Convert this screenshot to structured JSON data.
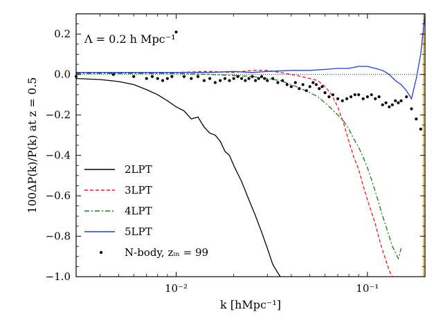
{
  "chart_data": {
    "type": "line",
    "x_scale": "log",
    "xlabel": "k [hMpc⁻¹]",
    "ylabel": "100ΔP(k)/P(k) at z = 0.5",
    "xlim": [
      0.003,
      0.2
    ],
    "ylim": [
      -1.0,
      0.3
    ],
    "x_ticks": [
      {
        "value": 0.01,
        "label": "10⁻²"
      },
      {
        "value": 0.1,
        "label": "10⁻¹"
      }
    ],
    "y_ticks": [
      {
        "value": 0.2,
        "label": "0.2"
      },
      {
        "value": 0.0,
        "label": "0.0"
      },
      {
        "value": -0.2,
        "label": "−0.2"
      },
      {
        "value": -0.4,
        "label": "−0.4"
      },
      {
        "value": -0.6,
        "label": "−0.6"
      },
      {
        "value": -0.8,
        "label": "−0.8"
      },
      {
        "value": -1.0,
        "label": "−1.0"
      }
    ],
    "annotation": "Λ = 0.2 h Mpc⁻¹",
    "zero_reference_line": true,
    "vertical_marker_x": 0.2,
    "series": [
      {
        "name": "2LPT",
        "color": "#000000",
        "dash": "",
        "x": [
          0.003,
          0.004,
          0.005,
          0.006,
          0.007,
          0.008,
          0.009,
          0.01,
          0.011,
          0.012,
          0.013,
          0.014,
          0.015,
          0.016,
          0.017,
          0.018,
          0.019,
          0.02,
          0.022,
          0.024,
          0.026,
          0.028,
          0.03,
          0.032,
          0.035
        ],
        "y": [
          -0.02,
          -0.025,
          -0.035,
          -0.05,
          -0.075,
          -0.1,
          -0.13,
          -0.16,
          -0.18,
          -0.22,
          -0.21,
          -0.26,
          -0.29,
          -0.3,
          -0.33,
          -0.38,
          -0.4,
          -0.45,
          -0.53,
          -0.62,
          -0.7,
          -0.78,
          -0.86,
          -0.94,
          -1.0
        ]
      },
      {
        "name": "3LPT",
        "color": "#e41a1c",
        "dash": "5,3",
        "x": [
          0.003,
          0.005,
          0.008,
          0.01,
          0.015,
          0.02,
          0.025,
          0.03,
          0.035,
          0.04,
          0.045,
          0.05,
          0.055,
          0.06,
          0.065,
          0.07,
          0.075,
          0.08,
          0.085,
          0.09,
          0.095,
          0.1,
          0.105,
          0.11,
          0.115,
          0.12,
          0.125,
          0.13,
          0.135
        ],
        "y": [
          0.01,
          0.01,
          0.01,
          0.01,
          0.015,
          0.01,
          0.02,
          0.02,
          0.01,
          0.0,
          -0.01,
          -0.02,
          -0.03,
          -0.06,
          -0.1,
          -0.16,
          -0.24,
          -0.33,
          -0.41,
          -0.47,
          -0.55,
          -0.62,
          -0.68,
          -0.74,
          -0.81,
          -0.87,
          -0.92,
          -0.97,
          -1.0
        ]
      },
      {
        "name": "4LPT",
        "color": "#1a7a1a",
        "dash": "7,3,2,3",
        "x": [
          0.003,
          0.005,
          0.008,
          0.01,
          0.015,
          0.02,
          0.025,
          0.03,
          0.035,
          0.04,
          0.045,
          0.05,
          0.055,
          0.06,
          0.065,
          0.07,
          0.075,
          0.08,
          0.085,
          0.09,
          0.095,
          0.1,
          0.105,
          0.11,
          0.115,
          0.12,
          0.125,
          0.13,
          0.135,
          0.14,
          0.145,
          0.15
        ],
        "y": [
          0.005,
          0.005,
          0.005,
          0.005,
          0.0,
          -0.005,
          -0.01,
          -0.02,
          -0.03,
          -0.05,
          -0.07,
          -0.09,
          -0.11,
          -0.14,
          -0.17,
          -0.2,
          -0.23,
          -0.27,
          -0.32,
          -0.36,
          -0.41,
          -0.46,
          -0.52,
          -0.58,
          -0.64,
          -0.7,
          -0.75,
          -0.8,
          -0.85,
          -0.88,
          -0.91,
          -0.86
        ]
      },
      {
        "name": "5LPT",
        "color": "#1f3fd6",
        "dash": "",
        "x": [
          0.003,
          0.005,
          0.008,
          0.01,
          0.015,
          0.02,
          0.025,
          0.03,
          0.04,
          0.05,
          0.06,
          0.07,
          0.08,
          0.09,
          0.1,
          0.11,
          0.12,
          0.13,
          0.14,
          0.15,
          0.16,
          0.17,
          0.18,
          0.19,
          0.2
        ],
        "y": [
          0.01,
          0.01,
          0.01,
          0.01,
          0.01,
          0.015,
          0.01,
          0.015,
          0.02,
          0.02,
          0.025,
          0.03,
          0.03,
          0.04,
          0.04,
          0.03,
          0.02,
          0.0,
          -0.03,
          -0.05,
          -0.08,
          -0.12,
          -0.02,
          0.1,
          0.3
        ]
      }
    ],
    "scatter": {
      "name": "N-body, z_in = 99",
      "color": "#000000",
      "x": [
        0.003,
        0.0047,
        0.006,
        0.007,
        0.0075,
        0.008,
        0.0085,
        0.009,
        0.0095,
        0.01,
        0.011,
        0.012,
        0.013,
        0.014,
        0.015,
        0.016,
        0.017,
        0.018,
        0.019,
        0.02,
        0.021,
        0.022,
        0.023,
        0.024,
        0.025,
        0.026,
        0.027,
        0.028,
        0.029,
        0.03,
        0.032,
        0.034,
        0.036,
        0.038,
        0.04,
        0.042,
        0.044,
        0.046,
        0.048,
        0.05,
        0.052,
        0.054,
        0.056,
        0.058,
        0.06,
        0.063,
        0.066,
        0.07,
        0.074,
        0.078,
        0.082,
        0.086,
        0.09,
        0.095,
        0.1,
        0.105,
        0.11,
        0.115,
        0.12,
        0.125,
        0.13,
        0.135,
        0.14,
        0.145,
        0.15,
        0.16,
        0.17,
        0.18,
        0.19
      ],
      "y": [
        -0.01,
        0.0,
        -0.01,
        -0.02,
        -0.01,
        -0.02,
        -0.03,
        -0.02,
        -0.01,
        0.21,
        -0.01,
        -0.02,
        -0.01,
        -0.03,
        -0.02,
        -0.04,
        -0.03,
        -0.02,
        -0.03,
        -0.02,
        -0.01,
        -0.02,
        -0.03,
        -0.02,
        -0.01,
        -0.03,
        -0.02,
        -0.01,
        -0.02,
        -0.03,
        -0.02,
        -0.04,
        -0.03,
        -0.05,
        -0.06,
        -0.04,
        -0.07,
        -0.05,
        -0.08,
        -0.06,
        -0.04,
        -0.05,
        -0.07,
        -0.06,
        -0.09,
        -0.11,
        -0.1,
        -0.12,
        -0.13,
        -0.12,
        -0.11,
        -0.1,
        -0.1,
        -0.12,
        -0.11,
        -0.1,
        -0.12,
        -0.11,
        -0.15,
        -0.14,
        -0.16,
        -0.15,
        -0.13,
        -0.14,
        -0.13,
        -0.11,
        -0.17,
        -0.22,
        -0.27
      ]
    },
    "legend": {
      "position": "lower-left",
      "entries": [
        {
          "label": "2LPT",
          "color": "#000000",
          "dash": ""
        },
        {
          "label": "3LPT",
          "color": "#e41a1c",
          "dash": "5,3"
        },
        {
          "label": "4LPT",
          "color": "#1a7a1a",
          "dash": "7,3,2,3"
        },
        {
          "label": "5LPT",
          "color": "#1f3fd6",
          "dash": ""
        },
        {
          "label": "N-body, zᵢₙ = 99",
          "color": "#000000",
          "dash": "dot"
        }
      ]
    }
  }
}
